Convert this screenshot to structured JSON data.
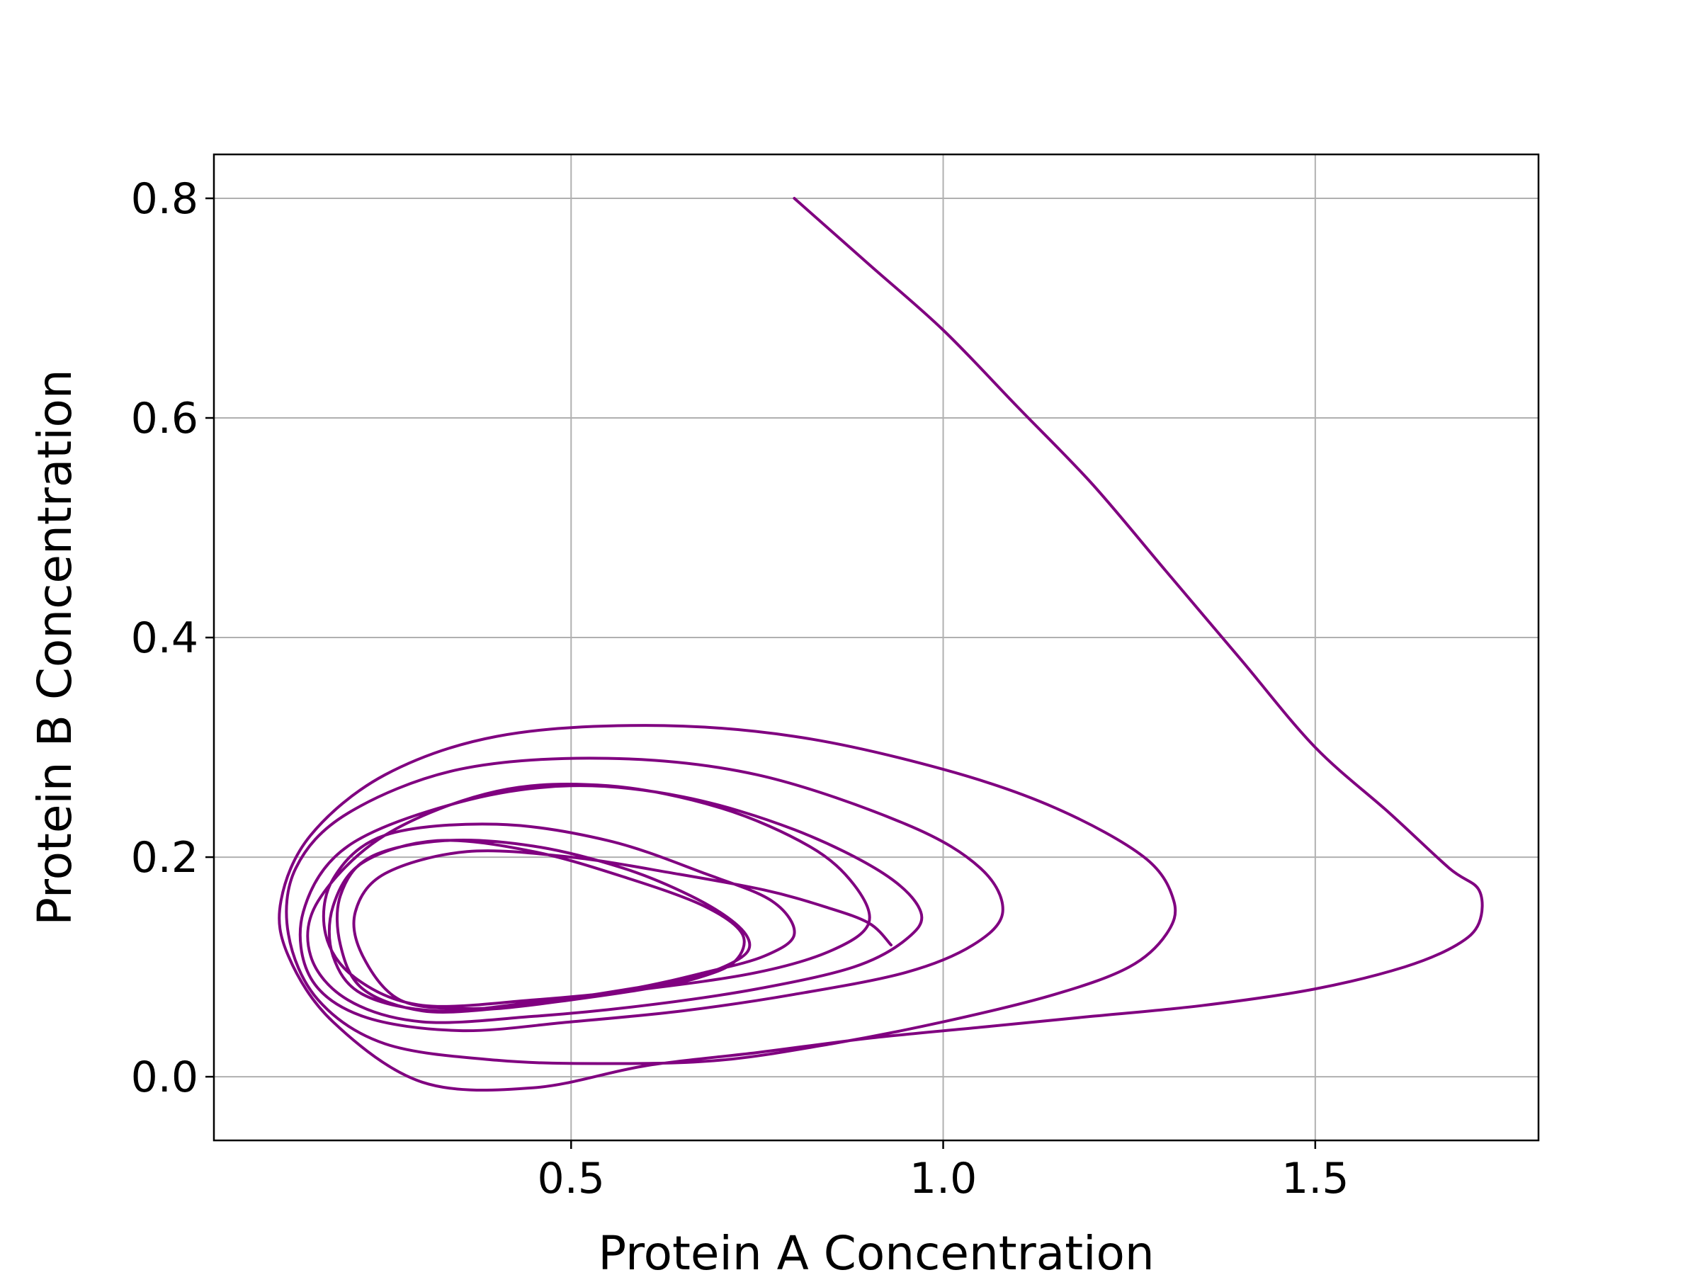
{
  "chart_data": {
    "type": "line",
    "title": "",
    "xlabel": "Protein A Concentration",
    "ylabel": "Protein B Concentration",
    "xlim": [
      0.02,
      1.8
    ],
    "ylim": [
      -0.058,
      0.84
    ],
    "xticks": [
      0.5,
      1.0,
      1.5
    ],
    "xtick_labels": [
      "0.5",
      "1.0",
      "1.5"
    ],
    "yticks": [
      0.0,
      0.2,
      0.4,
      0.6,
      0.8
    ],
    "ytick_labels": [
      "0.0",
      "0.2",
      "0.4",
      "0.6",
      "0.8"
    ],
    "grid": true,
    "legend": "none",
    "series": [
      {
        "color": "#800080",
        "x": [
          0.8,
          0.9,
          1.0,
          1.1,
          1.2,
          1.3,
          1.4,
          1.5,
          1.6,
          1.68,
          1.72,
          1.72,
          1.69,
          1.62,
          1.5,
          1.35,
          1.2,
          1.05,
          0.9,
          0.75,
          0.6,
          0.45,
          0.3,
          0.18,
          0.12,
          0.11,
          0.15,
          0.25,
          0.4,
          0.6,
          0.8,
          1.0,
          1.15,
          1.27,
          1.31,
          1.3,
          1.25,
          1.15,
          1.0,
          0.85,
          0.7,
          0.55,
          0.4,
          0.25,
          0.16,
          0.12,
          0.13,
          0.2,
          0.35,
          0.55,
          0.75,
          0.95,
          1.05,
          1.08,
          1.04,
          0.95,
          0.8,
          0.65,
          0.5,
          0.35,
          0.22,
          0.15,
          0.14,
          0.2,
          0.35,
          0.5,
          0.65,
          0.8,
          0.92,
          0.97,
          0.95,
          0.88,
          0.75,
          0.6,
          0.45,
          0.3,
          0.2,
          0.15,
          0.16,
          0.25,
          0.4,
          0.55,
          0.7,
          0.82,
          0.88,
          0.9,
          0.85,
          0.75,
          0.6,
          0.45,
          0.3,
          0.21,
          0.17,
          0.18,
          0.25,
          0.4,
          0.55,
          0.68,
          0.77,
          0.8,
          0.76,
          0.68,
          0.58,
          0.45,
          0.32,
          0.22,
          0.18,
          0.18,
          0.22,
          0.32,
          0.45,
          0.58,
          0.68,
          0.73,
          0.72,
          0.67,
          0.6,
          0.5,
          0.4,
          0.3,
          0.22,
          0.19,
          0.19,
          0.23,
          0.33,
          0.45,
          0.57,
          0.66,
          0.72,
          0.74,
          0.72,
          0.66,
          0.56,
          0.46,
          0.36,
          0.27,
          0.22,
          0.21,
          0.25,
          0.36,
          0.5,
          0.64,
          0.76,
          0.84,
          0.9,
          0.93
        ],
        "y": [
          0.8,
          0.74,
          0.68,
          0.61,
          0.54,
          0.46,
          0.38,
          0.3,
          0.24,
          0.19,
          0.17,
          0.14,
          0.12,
          0.1,
          0.08,
          0.065,
          0.055,
          0.045,
          0.035,
          0.022,
          0.01,
          -0.01,
          -0.005,
          0.05,
          0.11,
          0.16,
          0.22,
          0.275,
          0.31,
          0.32,
          0.31,
          0.28,
          0.245,
          0.2,
          0.16,
          0.13,
          0.1,
          0.075,
          0.05,
          0.03,
          0.015,
          0.012,
          0.015,
          0.03,
          0.07,
          0.13,
          0.19,
          0.24,
          0.28,
          0.29,
          0.275,
          0.23,
          0.19,
          0.15,
          0.12,
          0.095,
          0.075,
          0.06,
          0.05,
          0.042,
          0.055,
          0.09,
          0.15,
          0.21,
          0.25,
          0.265,
          0.255,
          0.225,
          0.185,
          0.15,
          0.125,
          0.1,
          0.08,
          0.065,
          0.055,
          0.05,
          0.07,
          0.11,
          0.16,
          0.22,
          0.26,
          0.265,
          0.245,
          0.21,
          0.175,
          0.14,
          0.115,
          0.095,
          0.08,
          0.07,
          0.065,
          0.09,
          0.13,
          0.18,
          0.22,
          0.23,
          0.215,
          0.185,
          0.16,
          0.13,
          0.11,
          0.095,
          0.08,
          0.068,
          0.06,
          0.075,
          0.11,
          0.155,
          0.195,
          0.215,
          0.205,
          0.18,
          0.155,
          0.13,
          0.105,
          0.09,
          0.08,
          0.07,
          0.062,
          0.06,
          0.08,
          0.12,
          0.165,
          0.2,
          0.215,
          0.21,
          0.19,
          0.165,
          0.14,
          0.12,
          0.105,
          0.09,
          0.078,
          0.068,
          0.062,
          0.07,
          0.11,
          0.15,
          0.185,
          0.205,
          0.2,
          0.185,
          0.17,
          0.155,
          0.14,
          0.12
        ]
      }
    ]
  }
}
